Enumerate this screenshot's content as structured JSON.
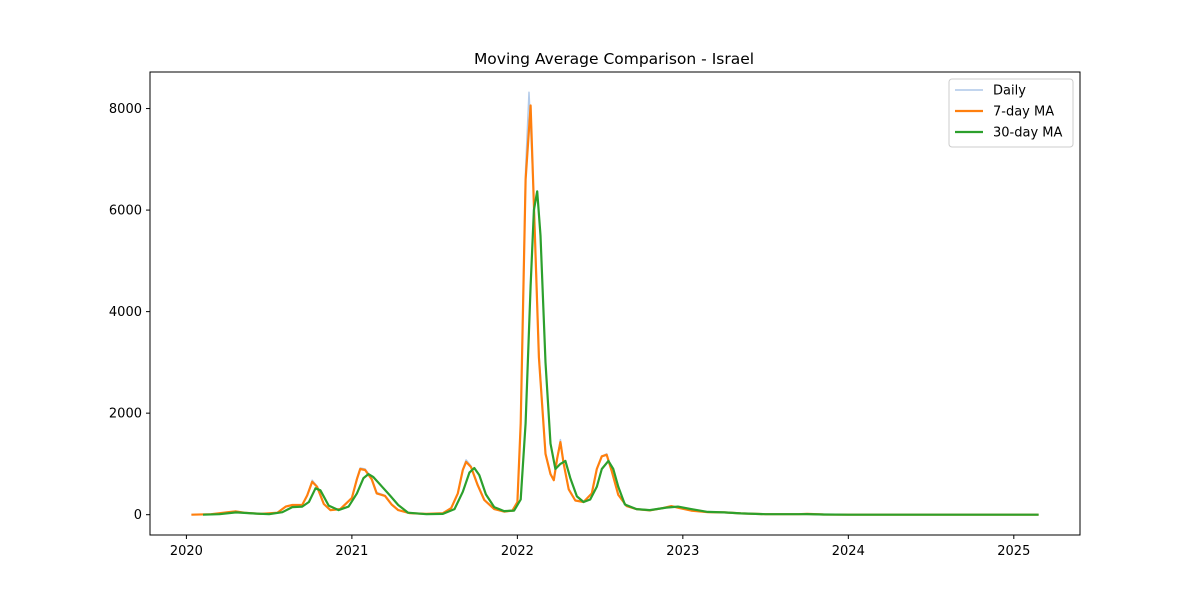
{
  "chart_data": {
    "type": "line",
    "title": "Moving Average Comparison - Israel",
    "xlabel": "",
    "ylabel": "",
    "x_ticks": [
      "2020",
      "2021",
      "2022",
      "2023",
      "2024",
      "2025"
    ],
    "y_ticks": [
      0,
      2000,
      4000,
      6000,
      8000
    ],
    "xlim": [
      2019.78,
      2025.4
    ],
    "ylim": [
      -400,
      8720
    ],
    "grid": false,
    "legend_placement": "top-right",
    "series": [
      {
        "name": "Daily",
        "color": "#aec7e8",
        "points": [
          [
            2020.03,
            0
          ],
          [
            2020.15,
            10
          ],
          [
            2020.25,
            50
          ],
          [
            2020.3,
            70
          ],
          [
            2020.35,
            40
          ],
          [
            2020.45,
            15
          ],
          [
            2020.55,
            40
          ],
          [
            2020.6,
            160
          ],
          [
            2020.64,
            190
          ],
          [
            2020.7,
            190
          ],
          [
            2020.73,
            380
          ],
          [
            2020.76,
            680
          ],
          [
            2020.79,
            560
          ],
          [
            2020.83,
            210
          ],
          [
            2020.87,
            90
          ],
          [
            2020.93,
            110
          ],
          [
            2021.0,
            330
          ],
          [
            2021.03,
            720
          ],
          [
            2021.05,
            920
          ],
          [
            2021.08,
            900
          ],
          [
            2021.12,
            720
          ],
          [
            2021.15,
            440
          ],
          [
            2021.2,
            380
          ],
          [
            2021.24,
            210
          ],
          [
            2021.28,
            90
          ],
          [
            2021.35,
            30
          ],
          [
            2021.45,
            15
          ],
          [
            2021.55,
            30
          ],
          [
            2021.6,
            130
          ],
          [
            2021.64,
            420
          ],
          [
            2021.67,
            900
          ],
          [
            2021.69,
            1080
          ],
          [
            2021.72,
            960
          ],
          [
            2021.76,
            600
          ],
          [
            2021.8,
            300
          ],
          [
            2021.86,
            110
          ],
          [
            2021.92,
            60
          ],
          [
            2021.97,
            80
          ],
          [
            2022.0,
            250
          ],
          [
            2022.02,
            1800
          ],
          [
            2022.05,
            6800
          ],
          [
            2022.07,
            8320
          ],
          [
            2022.1,
            6200
          ],
          [
            2022.13,
            3200
          ],
          [
            2022.17,
            1200
          ],
          [
            2022.2,
            800
          ],
          [
            2022.22,
            680
          ],
          [
            2022.24,
            1100
          ],
          [
            2022.26,
            1480
          ],
          [
            2022.28,
            1000
          ],
          [
            2022.31,
            500
          ],
          [
            2022.35,
            280
          ],
          [
            2022.4,
            260
          ],
          [
            2022.45,
            420
          ],
          [
            2022.48,
            900
          ],
          [
            2022.51,
            1150
          ],
          [
            2022.54,
            1200
          ],
          [
            2022.57,
            860
          ],
          [
            2022.61,
            390
          ],
          [
            2022.66,
            170
          ],
          [
            2022.72,
            110
          ],
          [
            2022.8,
            85
          ],
          [
            2022.88,
            130
          ],
          [
            2022.93,
            170
          ],
          [
            2022.98,
            130
          ],
          [
            2023.05,
            80
          ],
          [
            2023.15,
            50
          ],
          [
            2023.25,
            45
          ],
          [
            2023.35,
            25
          ],
          [
            2023.5,
            10
          ],
          [
            2023.7,
            10
          ],
          [
            2023.75,
            15
          ],
          [
            2023.85,
            3
          ],
          [
            2024.0,
            0
          ],
          [
            2024.5,
            0
          ],
          [
            2025.0,
            0
          ],
          [
            2025.15,
            0
          ]
        ]
      },
      {
        "name": "7-day MA",
        "color": "#ff7f0e",
        "points": [
          [
            2020.03,
            0
          ],
          [
            2020.15,
            10
          ],
          [
            2020.25,
            50
          ],
          [
            2020.3,
            65
          ],
          [
            2020.35,
            40
          ],
          [
            2020.45,
            15
          ],
          [
            2020.55,
            40
          ],
          [
            2020.6,
            160
          ],
          [
            2020.64,
            190
          ],
          [
            2020.7,
            190
          ],
          [
            2020.73,
            380
          ],
          [
            2020.76,
            650
          ],
          [
            2020.79,
            550
          ],
          [
            2020.83,
            210
          ],
          [
            2020.87,
            90
          ],
          [
            2020.93,
            110
          ],
          [
            2021.0,
            330
          ],
          [
            2021.03,
            700
          ],
          [
            2021.05,
            900
          ],
          [
            2021.08,
            880
          ],
          [
            2021.12,
            700
          ],
          [
            2021.15,
            420
          ],
          [
            2021.2,
            370
          ],
          [
            2021.24,
            200
          ],
          [
            2021.28,
            90
          ],
          [
            2021.35,
            30
          ],
          [
            2021.45,
            15
          ],
          [
            2021.55,
            30
          ],
          [
            2021.6,
            130
          ],
          [
            2021.64,
            420
          ],
          [
            2021.67,
            880
          ],
          [
            2021.69,
            1040
          ],
          [
            2021.72,
            940
          ],
          [
            2021.76,
            580
          ],
          [
            2021.8,
            290
          ],
          [
            2021.86,
            110
          ],
          [
            2021.92,
            60
          ],
          [
            2021.97,
            80
          ],
          [
            2022.0,
            250
          ],
          [
            2022.02,
            1800
          ],
          [
            2022.05,
            6600
          ],
          [
            2022.08,
            8060
          ],
          [
            2022.1,
            6100
          ],
          [
            2022.13,
            3100
          ],
          [
            2022.17,
            1200
          ],
          [
            2022.2,
            800
          ],
          [
            2022.22,
            680
          ],
          [
            2022.24,
            1100
          ],
          [
            2022.26,
            1430
          ],
          [
            2022.28,
            1000
          ],
          [
            2022.31,
            500
          ],
          [
            2022.35,
            280
          ],
          [
            2022.4,
            250
          ],
          [
            2022.45,
            420
          ],
          [
            2022.48,
            900
          ],
          [
            2022.51,
            1150
          ],
          [
            2022.54,
            1180
          ],
          [
            2022.57,
            860
          ],
          [
            2022.61,
            390
          ],
          [
            2022.66,
            170
          ],
          [
            2022.72,
            110
          ],
          [
            2022.8,
            85
          ],
          [
            2022.88,
            130
          ],
          [
            2022.93,
            170
          ],
          [
            2022.98,
            130
          ],
          [
            2023.05,
            80
          ],
          [
            2023.15,
            50
          ],
          [
            2023.25,
            45
          ],
          [
            2023.35,
            25
          ],
          [
            2023.5,
            10
          ],
          [
            2023.7,
            10
          ],
          [
            2023.75,
            15
          ],
          [
            2023.85,
            3
          ],
          [
            2024.0,
            0
          ],
          [
            2024.5,
            0
          ],
          [
            2025.0,
            0
          ],
          [
            2025.15,
            0
          ]
        ]
      },
      {
        "name": "30-day MA",
        "color": "#2ca02c",
        "points": [
          [
            2020.1,
            0
          ],
          [
            2020.2,
            10
          ],
          [
            2020.3,
            45
          ],
          [
            2020.4,
            25
          ],
          [
            2020.5,
            10
          ],
          [
            2020.58,
            50
          ],
          [
            2020.64,
            150
          ],
          [
            2020.7,
            160
          ],
          [
            2020.74,
            250
          ],
          [
            2020.78,
            520
          ],
          [
            2020.81,
            480
          ],
          [
            2020.86,
            180
          ],
          [
            2020.92,
            90
          ],
          [
            2020.98,
            160
          ],
          [
            2021.03,
            420
          ],
          [
            2021.07,
            720
          ],
          [
            2021.1,
            800
          ],
          [
            2021.13,
            740
          ],
          [
            2021.18,
            560
          ],
          [
            2021.23,
            380
          ],
          [
            2021.28,
            190
          ],
          [
            2021.34,
            40
          ],
          [
            2021.45,
            10
          ],
          [
            2021.55,
            15
          ],
          [
            2021.62,
            110
          ],
          [
            2021.67,
            450
          ],
          [
            2021.71,
            830
          ],
          [
            2021.74,
            920
          ],
          [
            2021.77,
            780
          ],
          [
            2021.81,
            400
          ],
          [
            2021.86,
            150
          ],
          [
            2021.92,
            70
          ],
          [
            2021.98,
            80
          ],
          [
            2022.02,
            300
          ],
          [
            2022.05,
            1800
          ],
          [
            2022.08,
            4500
          ],
          [
            2022.1,
            6000
          ],
          [
            2022.12,
            6370
          ],
          [
            2022.14,
            5500
          ],
          [
            2022.17,
            3000
          ],
          [
            2022.2,
            1400
          ],
          [
            2022.23,
            900
          ],
          [
            2022.26,
            1000
          ],
          [
            2022.29,
            1060
          ],
          [
            2022.32,
            720
          ],
          [
            2022.36,
            360
          ],
          [
            2022.4,
            250
          ],
          [
            2022.44,
            300
          ],
          [
            2022.48,
            550
          ],
          [
            2022.51,
            900
          ],
          [
            2022.55,
            1060
          ],
          [
            2022.58,
            900
          ],
          [
            2022.61,
            550
          ],
          [
            2022.65,
            200
          ],
          [
            2022.72,
            110
          ],
          [
            2022.8,
            90
          ],
          [
            2022.9,
            140
          ],
          [
            2022.97,
            160
          ],
          [
            2023.05,
            110
          ],
          [
            2023.15,
            55
          ],
          [
            2023.25,
            45
          ],
          [
            2023.35,
            25
          ],
          [
            2023.5,
            10
          ],
          [
            2023.7,
            10
          ],
          [
            2023.75,
            12
          ],
          [
            2023.85,
            3
          ],
          [
            2024.0,
            0
          ],
          [
            2024.5,
            0
          ],
          [
            2025.0,
            0
          ],
          [
            2025.15,
            0
          ]
        ]
      }
    ]
  }
}
